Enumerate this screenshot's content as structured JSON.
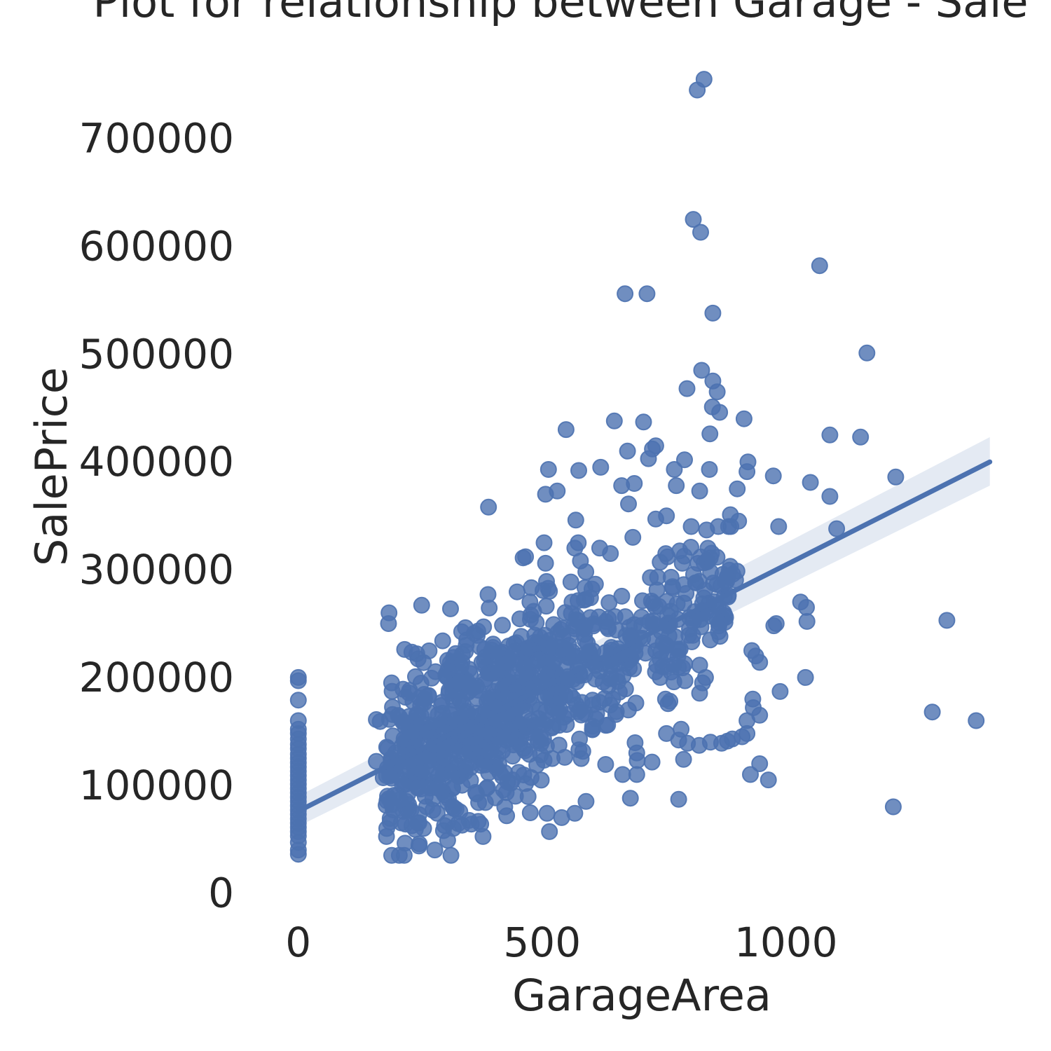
{
  "chart_data": {
    "type": "scatter",
    "title": "Plot for relationship between Garage - Sale",
    "xlabel": "GarageArea",
    "ylabel": "SalePrice",
    "xlim": [
      -60,
      1440
    ],
    "ylim": [
      -10000,
      770000
    ],
    "xticks": [
      0,
      500,
      1000
    ],
    "xtick_labels": [
      "0",
      "500",
      "1000"
    ],
    "yticks": [
      0,
      100000,
      200000,
      300000,
      400000,
      500000,
      600000,
      700000
    ],
    "ytick_labels": [
      "0",
      "100000",
      "200000",
      "300000",
      "400000",
      "500000",
      "600000",
      "700000"
    ],
    "grid": false,
    "regression": {
      "x": [
        0,
        1418
      ],
      "y": [
        76000,
        400000
      ],
      "ci_lower": [
        62000,
        378000
      ],
      "ci_upper": [
        90000,
        423000
      ]
    },
    "series": [
      {
        "points": [
          [
            0,
            200000
          ],
          [
            0,
            197000
          ],
          [
            0,
            179000
          ],
          [
            0,
            160000
          ],
          [
            0,
            152000
          ],
          [
            0,
            148000
          ],
          [
            0,
            143000
          ],
          [
            0,
            138000
          ],
          [
            0,
            134000
          ],
          [
            0,
            129000
          ],
          [
            0,
            125000
          ],
          [
            0,
            121000
          ],
          [
            0,
            117000
          ],
          [
            0,
            113000
          ],
          [
            0,
            109000
          ],
          [
            0,
            105000
          ],
          [
            0,
            101000
          ],
          [
            0,
            97000
          ],
          [
            0,
            93000
          ],
          [
            0,
            89000
          ],
          [
            0,
            85000
          ],
          [
            0,
            81000
          ],
          [
            0,
            77000
          ],
          [
            0,
            73000
          ],
          [
            0,
            69000
          ],
          [
            0,
            65000
          ],
          [
            0,
            61000
          ],
          [
            0,
            57000
          ],
          [
            0,
            53000
          ],
          [
            0,
            47000
          ],
          [
            0,
            40000
          ],
          [
            0,
            36000
          ],
          [
            832,
            755000
          ],
          [
            818,
            745000
          ],
          [
            810,
            625000
          ],
          [
            825,
            613000
          ],
          [
            1069,
            582000
          ],
          [
            670,
            556000
          ],
          [
            715,
            556000
          ],
          [
            850,
            538000
          ],
          [
            1166,
            501000
          ],
          [
            827,
            485000
          ],
          [
            850,
            475000
          ],
          [
            797,
            468000
          ],
          [
            859,
            465000
          ],
          [
            849,
            451000
          ],
          [
            864,
            446000
          ],
          [
            914,
            440000
          ],
          [
            648,
            438000
          ],
          [
            708,
            437000
          ],
          [
            844,
            426000
          ],
          [
            1090,
            425000
          ],
          [
            1153,
            423000
          ],
          [
            549,
            430000
          ],
          [
            733,
            415000
          ],
          [
            726,
            412000
          ],
          [
            675,
            410000
          ],
          [
            922,
            400000
          ],
          [
            792,
            402000
          ],
          [
            718,
            403000
          ],
          [
            513,
            393000
          ],
          [
            575,
            392000
          ],
          [
            620,
            395000
          ],
          [
            771,
            393000
          ],
          [
            843,
            393000
          ],
          [
            920,
            391000
          ],
          [
            974,
            387000
          ],
          [
            1225,
            386000
          ],
          [
            1050,
            381000
          ],
          [
            689,
            380000
          ],
          [
            663,
            378000
          ],
          [
            775,
            378000
          ],
          [
            900,
            375000
          ],
          [
            507,
            370000
          ],
          [
            531,
            373000
          ],
          [
            823,
            373000
          ],
          [
            1090,
            368000
          ],
          [
            390,
            358000
          ],
          [
            677,
            361000
          ],
          [
            733,
            347000
          ],
          [
            755,
            350000
          ],
          [
            569,
            346000
          ],
          [
            886,
            351000
          ],
          [
            903,
            345000
          ],
          [
            1104,
            338000
          ],
          [
            985,
            340000
          ]
        ]
      }
    ]
  }
}
